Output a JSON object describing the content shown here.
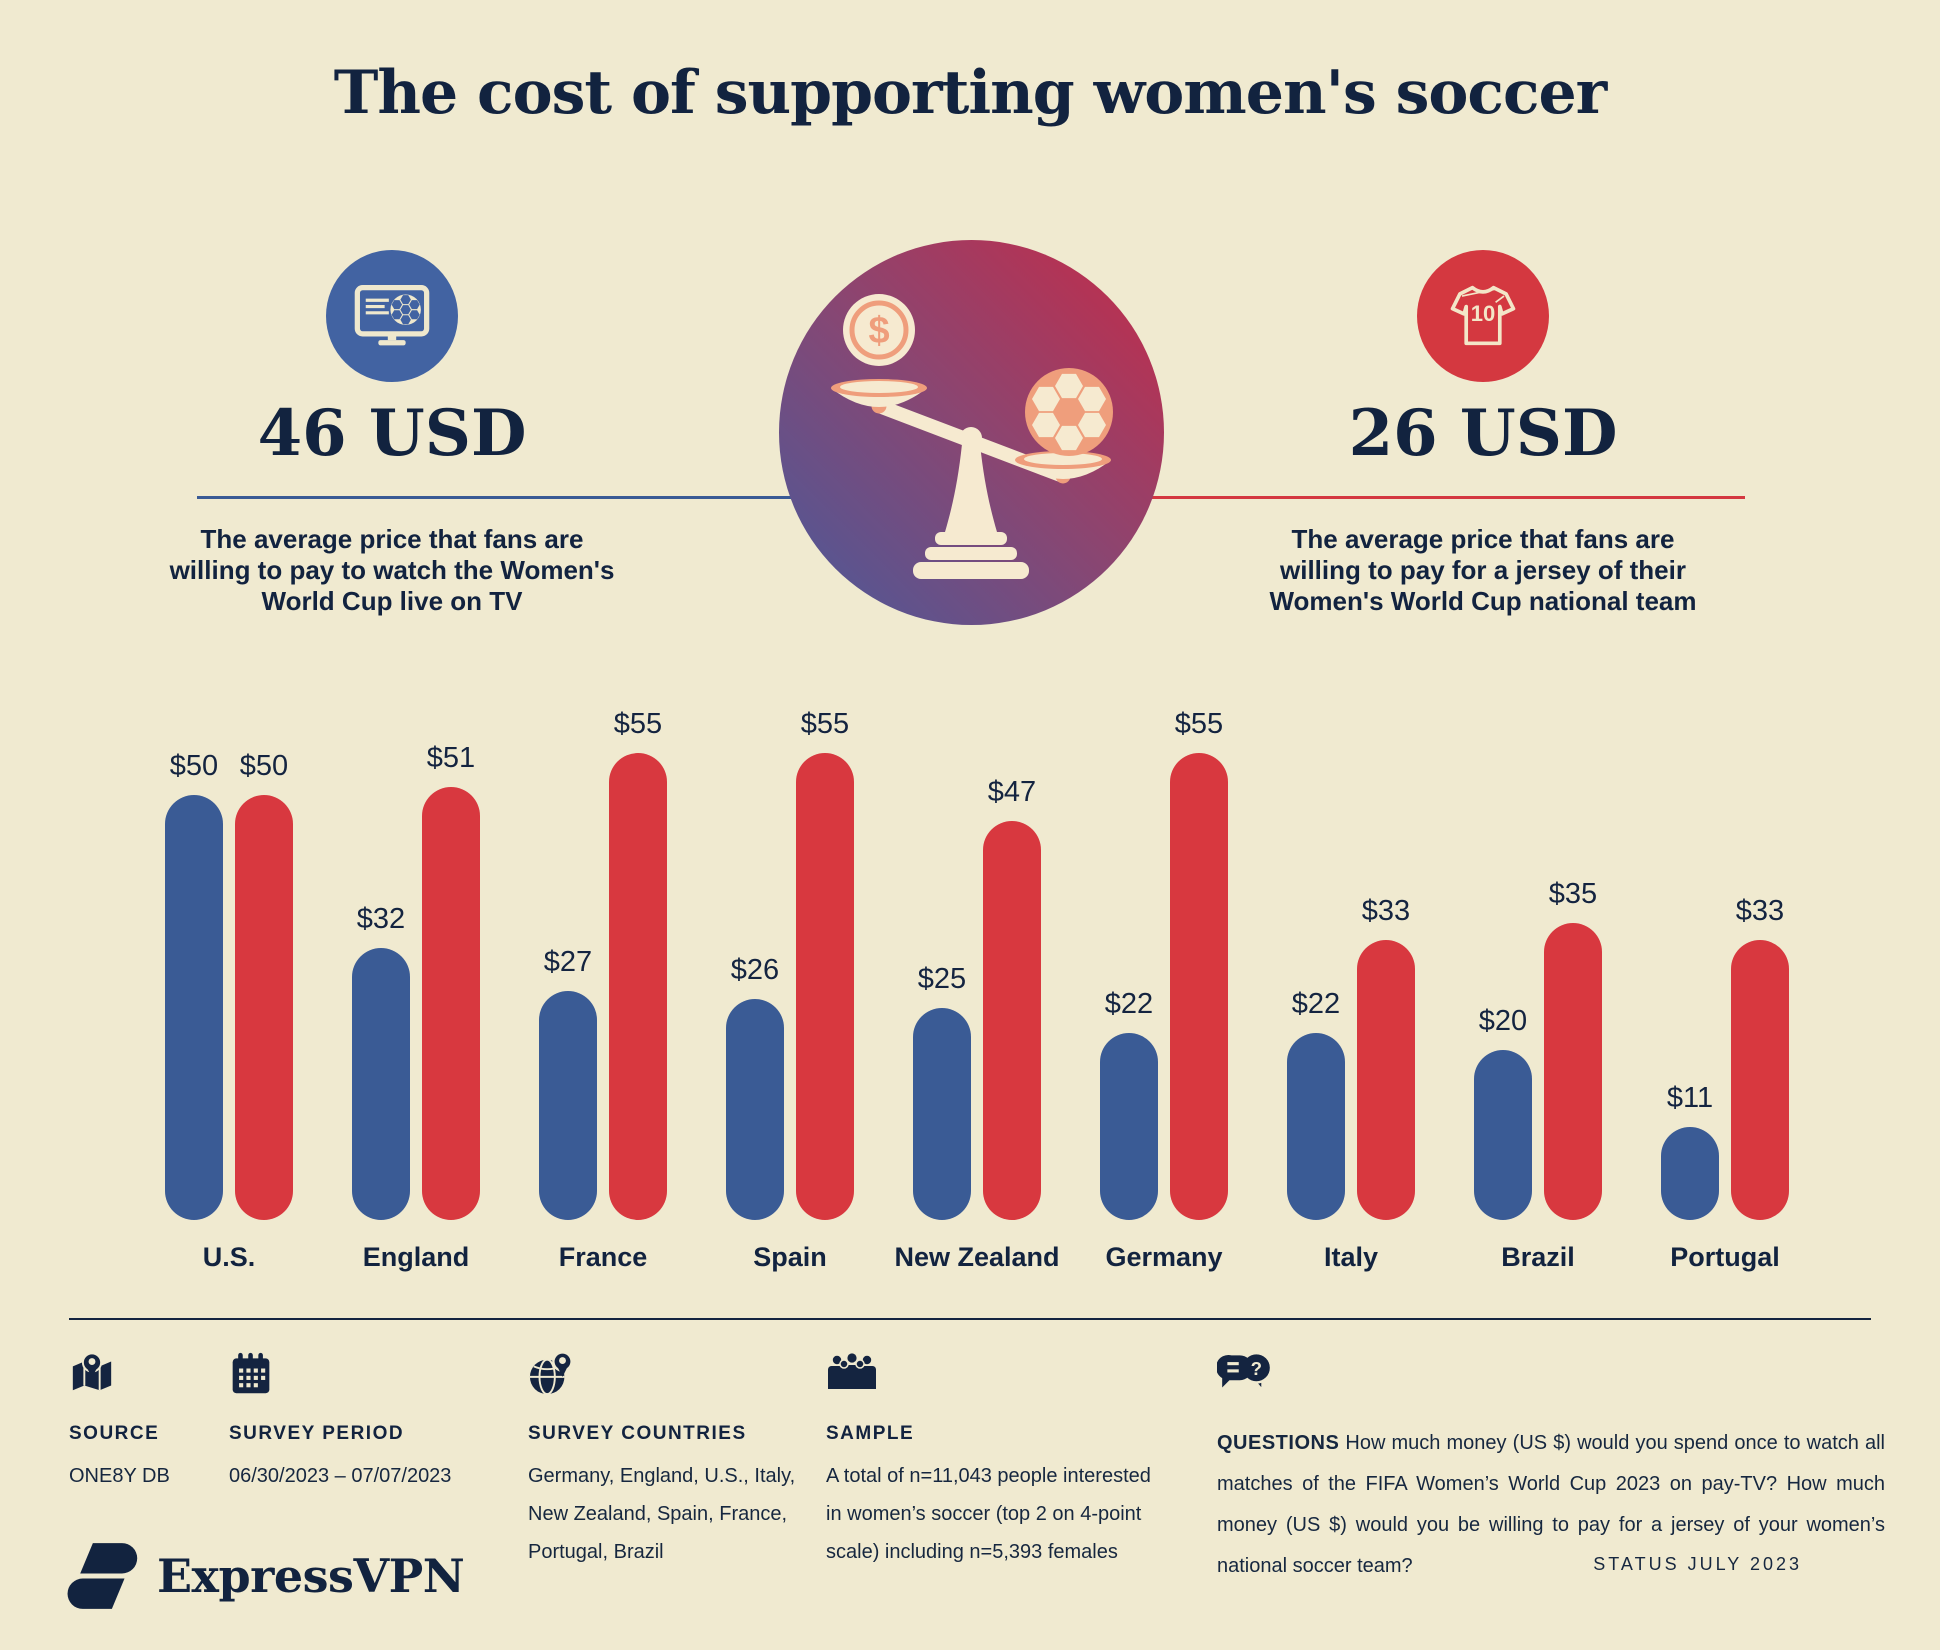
{
  "title": "The cost of supporting women's soccer",
  "stats": {
    "tv": {
      "value": "46 USD",
      "description": "The average price that fans are willing to pay to watch the Women's World Cup live on TV"
    },
    "jersey": {
      "value": "26 USD",
      "jersey_number": "10",
      "description": "The average price that fans are willing to pay for a jersey of their Women's World Cup national team"
    }
  },
  "illustration": {
    "left_pan": "dollar-coin",
    "right_pan": "soccer-ball",
    "coin_symbol": "$"
  },
  "chart_data": {
    "type": "bar",
    "categories": [
      "U.S.",
      "England",
      "France",
      "Spain",
      "New Zealand",
      "Germany",
      "Italy",
      "Brazil",
      "Portugal"
    ],
    "series": [
      {
        "name": "Price willing to pay to watch Women's World Cup on TV",
        "color": "#3a5b95",
        "values": [
          50,
          32,
          27,
          26,
          25,
          22,
          22,
          20,
          11
        ]
      },
      {
        "name": "Price willing to pay for a national team jersey",
        "color": "#d8383f",
        "values": [
          50,
          51,
          55,
          55,
          47,
          55,
          33,
          35,
          33
        ]
      }
    ],
    "value_prefix": "$",
    "ylim": [
      0,
      55
    ],
    "grid": false,
    "legend": "none",
    "bar_label_position": "above"
  },
  "footer": {
    "source": {
      "label": "SOURCE",
      "value": "ONE8Y DB"
    },
    "period": {
      "label": "SURVEY PERIOD",
      "value": "06/30/2023 – 07/07/2023"
    },
    "countries": {
      "label": "SURVEY COUNTRIES",
      "value": "Germany, England, U.S., Italy, New Zealand, Spain, France, Portugal, Brazil"
    },
    "sample": {
      "label": "SAMPLE",
      "value": "A total of n=11,043 people interested in women’s soccer (top 2 on 4-point scale) including n=5,393 females"
    },
    "questions": {
      "label": "QUESTIONS",
      "value": "How much money (US $) would you spend once to watch all matches of the FIFA Women’s World Cup 2023 on pay-TV? How much money (US $) would you be willing to pay for a jersey of your women’s national soccer team?"
    }
  },
  "branding": {
    "logo_text": "ExpressVPN",
    "status": "STATUS JULY 2023"
  }
}
